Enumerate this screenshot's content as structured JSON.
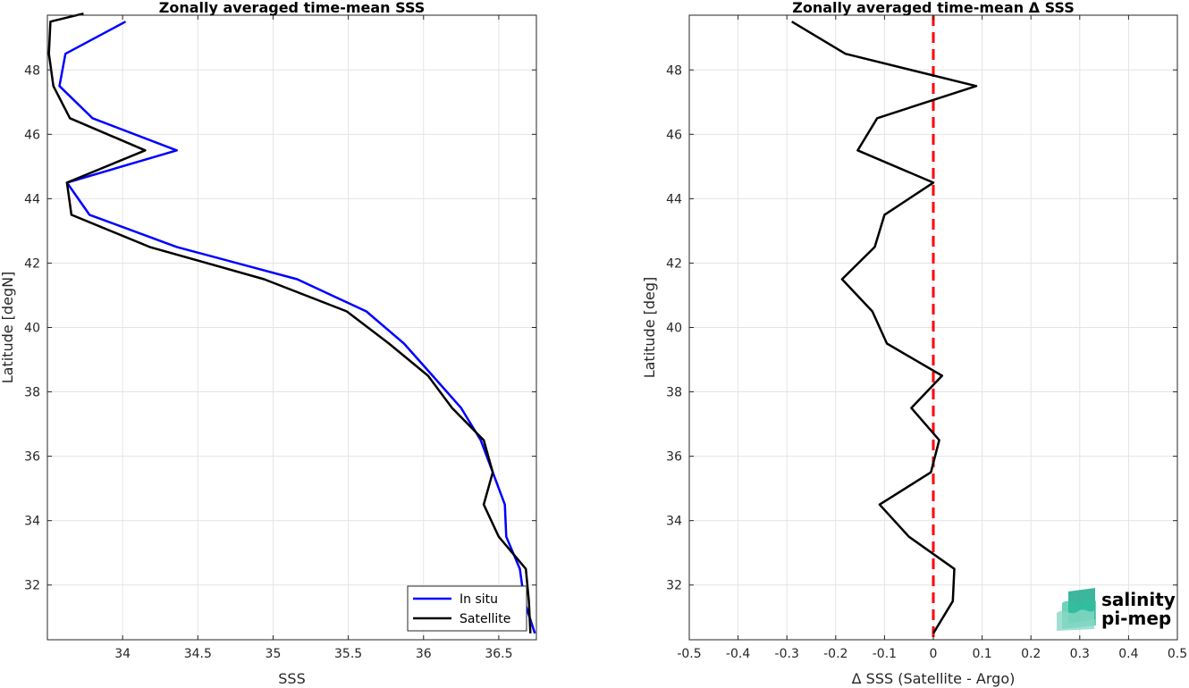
{
  "chart_data": [
    {
      "type": "line",
      "title": "Zonally averaged time-mean SSS",
      "xlabel": "SSS",
      "ylabel": "Latitude [degN]",
      "xlim": [
        33.5,
        36.75
      ],
      "ylim": [
        30.3,
        49.7
      ],
      "xticks": [
        34,
        34.5,
        35,
        35.5,
        36,
        36.5
      ],
      "xtick_labels": [
        "34",
        "34.5",
        "35",
        "35.5",
        "36",
        "36.5"
      ],
      "yticks": [
        32,
        34,
        36,
        38,
        40,
        42,
        44,
        46,
        48
      ],
      "ytick_labels": [
        "32",
        "34",
        "36",
        "38",
        "40",
        "42",
        "44",
        "46",
        "48"
      ],
      "grid": true,
      "legend": "bottom-right",
      "series": [
        {
          "name": "In situ",
          "color": "#0000ff",
          "points": [
            [
              34.02,
              49.5
            ],
            [
              33.62,
              48.5
            ],
            [
              33.58,
              47.5
            ],
            [
              33.8,
              46.5
            ],
            [
              34.36,
              45.5
            ],
            [
              33.63,
              44.5
            ],
            [
              33.78,
              43.5
            ],
            [
              34.36,
              42.5
            ],
            [
              35.16,
              41.5
            ],
            [
              35.62,
              40.5
            ],
            [
              35.87,
              39.5
            ],
            [
              36.06,
              38.5
            ],
            [
              36.25,
              37.5
            ],
            [
              36.38,
              36.5
            ],
            [
              36.46,
              35.5
            ],
            [
              36.54,
              34.5
            ],
            [
              36.55,
              33.5
            ],
            [
              36.64,
              32.5
            ],
            [
              36.67,
              31.5
            ],
            [
              36.74,
              30.5
            ]
          ]
        },
        {
          "name": "Satellite",
          "color": "#000000",
          "points": [
            [
              33.74,
              49.75
            ],
            [
              33.52,
              49.5
            ],
            [
              33.51,
              48.5
            ],
            [
              33.54,
              47.5
            ],
            [
              33.65,
              46.5
            ],
            [
              34.15,
              45.5
            ],
            [
              33.63,
              44.5
            ],
            [
              33.66,
              43.5
            ],
            [
              34.18,
              42.5
            ],
            [
              34.94,
              41.5
            ],
            [
              35.49,
              40.5
            ],
            [
              35.77,
              39.5
            ],
            [
              36.03,
              38.5
            ],
            [
              36.19,
              37.5
            ],
            [
              36.4,
              36.5
            ],
            [
              36.46,
              35.5
            ],
            [
              36.4,
              34.5
            ],
            [
              36.5,
              33.5
            ],
            [
              36.68,
              32.5
            ],
            [
              36.7,
              31.5
            ],
            [
              36.71,
              30.5
            ]
          ]
        }
      ]
    },
    {
      "type": "line",
      "title": "Zonally averaged time-mean Δ SSS",
      "xlabel": "Δ SSS (Satellite - Argo)",
      "ylabel": "Latitude [deg]",
      "xlim": [
        -0.5,
        0.5
      ],
      "ylim": [
        30.3,
        49.7
      ],
      "xticks": [
        -0.5,
        -0.4,
        -0.3,
        -0.2,
        -0.1,
        0,
        0.1,
        0.2,
        0.3,
        0.4,
        0.5
      ],
      "xtick_labels": [
        "-0.5",
        "-0.4",
        "-0.3",
        "-0.2",
        "-0.1",
        "0",
        "0.1",
        "0.2",
        "0.3",
        "0.4",
        "0.5"
      ],
      "yticks": [
        32,
        34,
        36,
        38,
        40,
        42,
        44,
        46,
        48
      ],
      "ytick_labels": [
        "32",
        "34",
        "36",
        "38",
        "40",
        "42",
        "44",
        "46",
        "48"
      ],
      "grid": true,
      "reference_line": {
        "x": 0,
        "color": "#ff0000",
        "style": "dashed"
      },
      "series": [
        {
          "color": "#000000",
          "points": [
            [
              -0.29,
              49.5
            ],
            [
              -0.18,
              48.5
            ],
            [
              0.088,
              47.5
            ],
            [
              -0.115,
              46.5
            ],
            [
              -0.155,
              45.5
            ],
            [
              0.0,
              44.5
            ],
            [
              -0.1,
              43.5
            ],
            [
              -0.12,
              42.5
            ],
            [
              -0.187,
              41.5
            ],
            [
              -0.125,
              40.5
            ],
            [
              -0.095,
              39.5
            ],
            [
              0.018,
              38.5
            ],
            [
              -0.045,
              37.5
            ],
            [
              0.012,
              36.5
            ],
            [
              -0.005,
              35.5
            ],
            [
              -0.11,
              34.5
            ],
            [
              -0.05,
              33.5
            ],
            [
              0.043,
              32.5
            ],
            [
              0.04,
              31.5
            ],
            [
              0.0,
              30.5
            ]
          ]
        }
      ]
    }
  ],
  "logo": {
    "line1": "salinity",
    "line2": "pi-mep",
    "color": "#1aaa8c"
  }
}
